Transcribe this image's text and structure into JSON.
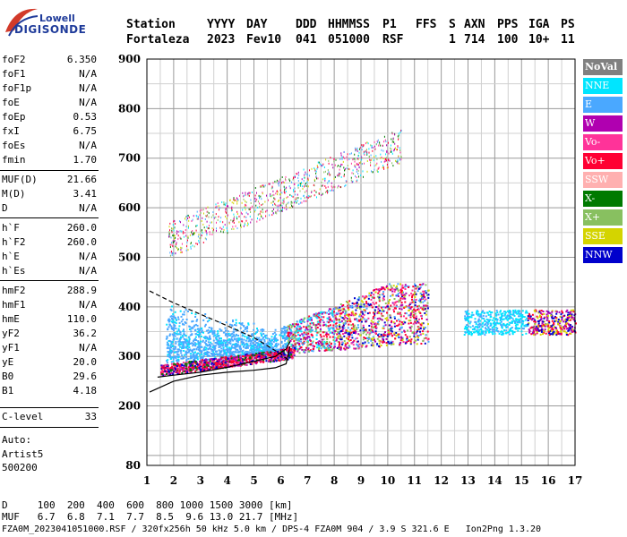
{
  "logo": {
    "brand": "Lowell",
    "product": "DIGISONDE"
  },
  "header": {
    "labels": [
      "Station",
      "YYYY",
      "DAY",
      "DDD",
      "HHMMSS",
      "P1",
      "FFS",
      "S",
      "AXN",
      "PPS",
      "IGA",
      "PS"
    ],
    "values": [
      "Fortaleza",
      "2023",
      "Fev10",
      "041",
      "051000",
      "RSF",
      "",
      "1",
      "714",
      "100",
      "10+",
      "11"
    ]
  },
  "params": [
    {
      "key": "foF2",
      "value": "6.350"
    },
    {
      "key": "foF1",
      "value": "N/A"
    },
    {
      "key": "foF1p",
      "value": "N/A"
    },
    {
      "key": "foE",
      "value": "N/A"
    },
    {
      "key": "foEp",
      "value": "0.53"
    },
    {
      "key": "fxI",
      "value": "6.75"
    },
    {
      "key": "foEs",
      "value": "N/A"
    },
    {
      "key": "fmin",
      "value": "1.70"
    },
    {
      "key": "MUF(D)",
      "value": "21.66"
    },
    {
      "key": "M(D)",
      "value": "3.41"
    },
    {
      "key": "D",
      "value": "N/A"
    },
    {
      "key": "h`F",
      "value": "260.0"
    },
    {
      "key": "h`F2",
      "value": "260.0"
    },
    {
      "key": "h`E",
      "value": "N/A"
    },
    {
      "key": "h`Es",
      "value": "N/A"
    },
    {
      "key": "hmF2",
      "value": "288.9"
    },
    {
      "key": "hmF1",
      "value": "N/A"
    },
    {
      "key": "hmE",
      "value": "110.0"
    },
    {
      "key": "yF2",
      "value": "36.2"
    },
    {
      "key": "yF1",
      "value": "N/A"
    },
    {
      "key": "yE",
      "value": "20.0"
    },
    {
      "key": "B0",
      "value": "29.6"
    },
    {
      "key": "B1",
      "value": "4.18"
    },
    {
      "key": "C-level",
      "value": "33"
    }
  ],
  "auto": {
    "label": "Auto:",
    "artist": "Artist5",
    "version": "500200"
  },
  "legend": [
    {
      "label": "NoVal",
      "color": "#808080"
    },
    {
      "label": "NNE",
      "color": "#00e5ff"
    },
    {
      "label": "E",
      "color": "#4aa8ff"
    },
    {
      "label": "W",
      "color": "#b000b0"
    },
    {
      "label": "Vo-",
      "color": "#ff3399"
    },
    {
      "label": "Vo+",
      "color": "#ff0033"
    },
    {
      "label": "SSW",
      "color": "#ffb0b0"
    },
    {
      "label": "X-",
      "color": "#007a00"
    },
    {
      "label": "X+",
      "color": "#88c060"
    },
    {
      "label": "SSE",
      "color": "#d4d400"
    },
    {
      "label": "NNW",
      "color": "#0000cc"
    }
  ],
  "footer": {
    "line1": "D     100  200  400  600  800 1000 1500 3000 [km]",
    "line2": "MUF   6.7  6.8  7.1  7.7  8.5  9.6 13.0 21.7 [MHz]",
    "line3": "FZA0M_2023041051000.RSF / 320fx256h 50 kHz 5.0 km / DPS-4 FZA0M 904 / 3.9 S 321.6 E   Ion2Png 1.3.20"
  },
  "chart_data": {
    "type": "scatter",
    "xlabel": "",
    "ylabel": "",
    "xlim": [
      1,
      17
    ],
    "ylim": [
      80,
      900
    ],
    "x_ticks": [
      1,
      2,
      3,
      4,
      5,
      6,
      7,
      8,
      9,
      10,
      11,
      12,
      13,
      14,
      15,
      16,
      17
    ],
    "y_ticks": [
      80,
      200,
      300,
      400,
      500,
      600,
      700,
      800,
      900
    ],
    "grid": true,
    "legend_position": "right",
    "profile_curve": {
      "x": [
        1.1,
        2.0,
        3.0,
        4.0,
        5.0,
        5.8,
        6.2,
        6.35
      ],
      "y": [
        228,
        250,
        262,
        268,
        272,
        277,
        285,
        320
      ]
    },
    "trace_curve": {
      "x": [
        1.4,
        2.0,
        3.0,
        4.0,
        5.0,
        5.8,
        6.2,
        6.35
      ],
      "y": [
        258,
        262,
        268,
        278,
        290,
        300,
        315,
        330
      ]
    },
    "dashed_curve": {
      "x": [
        1.1,
        2.0,
        3.0,
        4.0,
        5.0,
        6.0,
        6.35
      ],
      "y": [
        432,
        408,
        385,
        362,
        338,
        305,
        290
      ]
    },
    "echo_regions": [
      {
        "name": "F-trace",
        "x_range": [
          1.5,
          6.5
        ],
        "y_range": [
          258,
          330
        ]
      },
      {
        "name": "F-spread",
        "x_range": [
          1.7,
          11.5
        ],
        "y_range": [
          280,
          480
        ]
      },
      {
        "name": "F-multi",
        "x_range": [
          1.8,
          10.5
        ],
        "y_range": [
          490,
          760
        ]
      },
      {
        "name": "Far",
        "x_range": [
          12.8,
          17
        ],
        "y_range": [
          330,
          400
        ]
      }
    ]
  }
}
